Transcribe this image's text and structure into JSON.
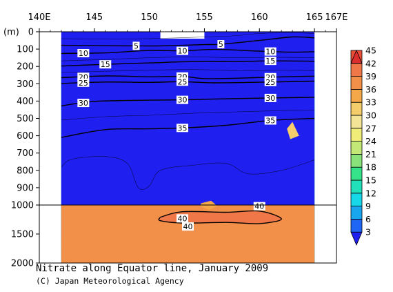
{
  "title": "Nitrate along Equator line, January 2009",
  "credit": "(C) Japan Meteorological Agency",
  "chart_data": {
    "type": "heatmap",
    "title": "Nitrate along Equator line, January 2009",
    "x_axis": {
      "range": [
        140,
        167
      ],
      "tick_labels": [
        "140E",
        "145",
        "150",
        "155",
        "160",
        "165",
        "167E"
      ],
      "tick_values": [
        140,
        145,
        150,
        155,
        160,
        165,
        167
      ]
    },
    "y_axis": {
      "unit_label": "(m)",
      "inverted": true,
      "upper_segment": {
        "range": [
          0,
          1000
        ],
        "tick_labels": [
          "0",
          "100",
          "200",
          "300",
          "400",
          "500",
          "600",
          "700",
          "800",
          "900",
          "1000"
        ],
        "tick_values": [
          0,
          100,
          200,
          300,
          400,
          500,
          600,
          700,
          800,
          900,
          1000
        ]
      },
      "lower_segment": {
        "range": [
          1000,
          2000
        ],
        "tick_labels": [
          "1500",
          "2000"
        ],
        "tick_values": [
          1500,
          2000
        ]
      }
    },
    "data_extent_lon": [
      142,
      165
    ],
    "colorbar": {
      "levels": [
        3,
        6,
        9,
        12,
        15,
        18,
        21,
        24,
        27,
        30,
        33,
        36,
        39,
        42,
        45
      ],
      "tick_labels": [
        "3",
        "6",
        "9",
        "12",
        "15",
        "18",
        "21",
        "24",
        "27",
        "30",
        "33",
        "36",
        "39",
        "42",
        "45"
      ],
      "colors": [
        "#1f1ff0",
        "#1f66f5",
        "#1aa6ee",
        "#16d8e8",
        "#22e1ba",
        "#37e38a",
        "#8ae27a",
        "#c3e878",
        "#f0ee78",
        "#f3e496",
        "#f5cd6a",
        "#f4a848",
        "#f2904a",
        "#f07848",
        "#ea4e37",
        "#dd2e2e"
      ]
    },
    "contours": [
      {
        "value": 5,
        "labels_at_lon": [
          148.8,
          156.5
        ],
        "depth_m": [
          [
            142,
            78
          ],
          [
            150,
            82
          ],
          [
            155,
            74
          ],
          [
            156.5,
            72
          ],
          [
            160,
            50
          ],
          [
            163,
            30
          ],
          [
            165,
            35
          ]
        ]
      },
      {
        "value": 10,
        "labels_at_lon": [
          144,
          153,
          161
        ],
        "depth_m": [
          [
            142,
            125
          ],
          [
            146,
            122
          ],
          [
            150,
            108
          ],
          [
            153,
            110
          ],
          [
            156,
            102
          ],
          [
            160,
            112
          ],
          [
            163,
            118
          ],
          [
            165,
            115
          ]
        ]
      },
      {
        "value": 15,
        "labels_at_lon": [
          146,
          161
        ],
        "depth_m": [
          [
            142,
            198
          ],
          [
            146,
            188
          ],
          [
            150,
            180
          ],
          [
            154,
            172
          ],
          [
            158,
            172
          ],
          [
            161,
            168
          ],
          [
            165,
            170
          ]
        ]
      },
      {
        "value": 20,
        "labels_at_lon": [
          144,
          153,
          161
        ],
        "depth_m": [
          [
            142,
            265
          ],
          [
            146,
            255
          ],
          [
            150,
            260
          ],
          [
            153,
            258
          ],
          [
            155,
            270
          ],
          [
            158,
            268
          ],
          [
            161,
            262
          ],
          [
            165,
            256
          ]
        ]
      },
      {
        "value": 25,
        "labels_at_lon": [
          144,
          153,
          161
        ],
        "depth_m": [
          [
            142,
            298
          ],
          [
            146,
            290
          ],
          [
            150,
            292
          ],
          [
            153,
            288
          ],
          [
            156,
            295
          ],
          [
            161,
            290
          ],
          [
            165,
            285
          ]
        ]
      },
      {
        "value": 30,
        "labels_at_lon": [
          144,
          153,
          161
        ],
        "depth_m": [
          [
            142,
            428
          ],
          [
            145,
            402
          ],
          [
            150,
            395
          ],
          [
            153,
            393
          ],
          [
            156,
            388
          ],
          [
            161,
            382
          ],
          [
            165,
            378
          ]
        ]
      },
      {
        "value": 35,
        "labels_at_lon": [
          153,
          161
        ],
        "depth_m": [
          [
            142,
            610
          ],
          [
            146,
            565
          ],
          [
            150,
            560
          ],
          [
            153,
            555
          ],
          [
            157,
            540
          ],
          [
            161,
            512
          ],
          [
            165,
            500
          ]
        ]
      },
      {
        "value": 40,
        "labels_at_lon": [
          153,
          160,
          153.5
        ],
        "depth_m": [
          [
            151,
            1210
          ],
          [
            153,
            1115
          ],
          [
            157,
            1125
          ],
          [
            160,
            1105
          ],
          [
            162,
            1240
          ],
          [
            160,
            1320
          ],
          [
            157,
            1300
          ],
          [
            153,
            1310
          ],
          [
            151,
            1270
          ]
        ]
      }
    ],
    "missing_region": {
      "lon": [
        151,
        155
      ],
      "depth_m": [
        0,
        40
      ]
    }
  }
}
